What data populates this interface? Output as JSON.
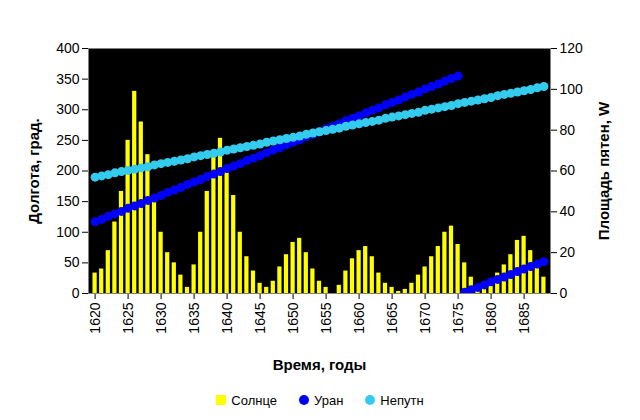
{
  "chart_data": {
    "type": "bar",
    "x_label": "Время, годы",
    "y_label": "Долгота, град.",
    "y2_label": "Площадь пятен, W",
    "x": [
      1620,
      1621,
      1622,
      1623,
      1624,
      1625,
      1626,
      1627,
      1628,
      1629,
      1630,
      1631,
      1632,
      1633,
      1634,
      1635,
      1636,
      1637,
      1638,
      1639,
      1640,
      1641,
      1642,
      1643,
      1644,
      1645,
      1646,
      1647,
      1648,
      1649,
      1650,
      1651,
      1652,
      1653,
      1654,
      1655,
      1656,
      1657,
      1658,
      1659,
      1660,
      1661,
      1662,
      1663,
      1664,
      1665,
      1666,
      1667,
      1668,
      1669,
      1670,
      1671,
      1672,
      1673,
      1674,
      1675,
      1676,
      1677,
      1678,
      1679,
      1680,
      1681,
      1682,
      1683,
      1684,
      1685,
      1686,
      1687,
      1688
    ],
    "xlim": [
      1619,
      1689
    ],
    "xticks": [
      1620,
      1625,
      1630,
      1635,
      1640,
      1645,
      1650,
      1655,
      1660,
      1665,
      1670,
      1675,
      1680,
      1685
    ],
    "ylim": [
      0,
      400
    ],
    "yticks": [
      0,
      50,
      100,
      150,
      200,
      250,
      300,
      350,
      400
    ],
    "y2lim": [
      0,
      120
    ],
    "y2ticks": [
      0,
      20,
      40,
      60,
      80,
      100,
      120
    ],
    "legend": "bottom",
    "series": [
      {
        "name": "Солнце",
        "type": "bar",
        "axis": "y2",
        "color": "#ffff00",
        "values": [
          10,
          12,
          21,
          35,
          50,
          75,
          99,
          84,
          68,
          46,
          30,
          20,
          15,
          9,
          3,
          14,
          30,
          50,
          70,
          76,
          60,
          48,
          30,
          18,
          11,
          5,
          3,
          6,
          13,
          19,
          25,
          27,
          20,
          12,
          6,
          3,
          0,
          4,
          11,
          17,
          21,
          23,
          18,
          10,
          5,
          3,
          1,
          2,
          5,
          9,
          13,
          18,
          23,
          30,
          33,
          24,
          15,
          8,
          4,
          3,
          5,
          10,
          14,
          19,
          26,
          28,
          21,
          13,
          8
        ]
      },
      {
        "name": "Уран",
        "type": "scatter",
        "marker": "circle",
        "color": "#0000ff",
        "values": [
          117,
          121,
          126,
          130,
          134,
          139,
          143,
          147,
          152,
          156,
          160,
          165,
          169,
          173,
          178,
          182,
          186,
          191,
          195,
          199,
          204,
          208,
          212,
          217,
          221,
          225,
          230,
          234,
          238,
          243,
          247,
          251,
          256,
          260,
          264,
          269,
          273,
          277,
          282,
          286,
          290,
          295,
          299,
          303,
          308,
          312,
          316,
          321,
          325,
          329,
          334,
          338,
          342,
          347,
          351,
          355,
          2,
          6,
          10,
          14,
          19,
          23,
          27,
          31,
          36,
          40,
          44,
          48,
          52
        ]
      },
      {
        "name": "Непутн",
        "type": "scatter",
        "marker": "circle",
        "color": "#33ccee",
        "values": [
          190,
          192,
          194,
          197,
          199,
          201,
          203,
          205,
          207,
          210,
          212,
          214,
          216,
          218,
          220,
          223,
          225,
          227,
          229,
          231,
          234,
          236,
          238,
          240,
          242,
          244,
          247,
          249,
          251,
          253,
          255,
          257,
          260,
          262,
          264,
          266,
          268,
          270,
          273,
          275,
          277,
          279,
          281,
          283,
          286,
          288,
          290,
          292,
          294,
          296,
          299,
          301,
          303,
          305,
          307,
          310,
          312,
          314,
          316,
          318,
          320,
          323,
          325,
          327,
          329,
          331,
          333,
          336,
          338
        ]
      }
    ]
  }
}
